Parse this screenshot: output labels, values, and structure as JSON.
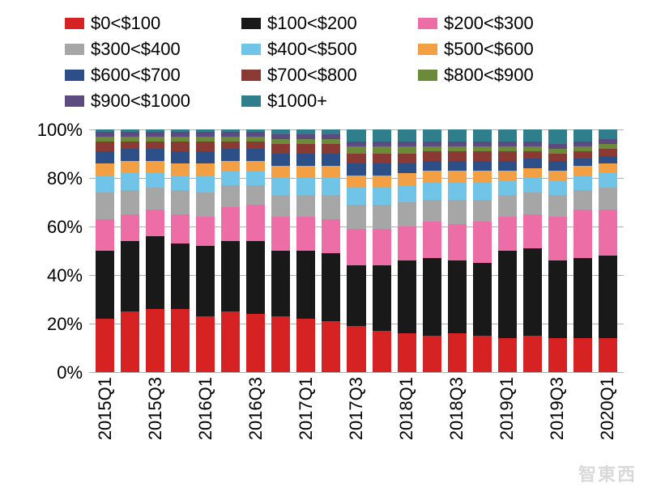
{
  "chart": {
    "type": "stacked-bar-100pct",
    "background_color": "#ffffff",
    "grid_color": "#b0b0b0",
    "font_family": "Arial",
    "label_fontsize": 22,
    "ylim": [
      0,
      100
    ],
    "ytick_step": 20,
    "y_suffix": "%",
    "series": [
      {
        "label": "$0<$100",
        "color": "#d62223"
      },
      {
        "label": "$100<$200",
        "color": "#191919"
      },
      {
        "label": "$200<$300",
        "color": "#ed6ea7"
      },
      {
        "label": "$300<$400",
        "color": "#a6a6a6"
      },
      {
        "label": "$400<$500",
        "color": "#6fc4e8"
      },
      {
        "label": "$500<$600",
        "color": "#f2a043"
      },
      {
        "label": "$600<$700",
        "color": "#2d4f87"
      },
      {
        "label": "$700<$800",
        "color": "#8a3a33"
      },
      {
        "label": "$800<$900",
        "color": "#6c8b3a"
      },
      {
        "label": "$900<$1000",
        "color": "#5c4a80"
      },
      {
        "label": "$1000+",
        "color": "#2f7e8c"
      }
    ],
    "legend_layout": [
      [
        0,
        1,
        2
      ],
      [
        3,
        4,
        5
      ],
      [
        6,
        7,
        8
      ],
      [
        9,
        10
      ]
    ],
    "categories": [
      "2015Q1",
      "2015Q2",
      "2015Q3",
      "2015Q4",
      "2016Q1",
      "2016Q2",
      "2016Q3",
      "2016Q4",
      "2017Q1",
      "2017Q2",
      "2017Q3",
      "2017Q4",
      "2018Q1",
      "2018Q2",
      "2018Q3",
      "2018Q4",
      "2019Q1",
      "2019Q2",
      "2019Q3",
      "2019Q4",
      "2020Q1"
    ],
    "x_label_visible_step": 2,
    "data": [
      [
        22,
        28,
        13,
        11,
        7,
        5,
        5,
        4,
        2,
        2,
        1
      ],
      [
        25,
        29,
        11,
        10,
        7,
        5,
        5,
        3,
        2,
        2,
        1
      ],
      [
        26,
        30,
        11,
        9,
        6,
        5,
        5,
        3,
        2,
        2,
        1
      ],
      [
        26,
        27,
        12,
        10,
        6,
        5,
        5,
        4,
        2,
        2,
        1
      ],
      [
        23,
        29,
        12,
        10,
        7,
        5,
        5,
        4,
        2,
        2,
        1
      ],
      [
        25,
        29,
        14,
        9,
        6,
        4,
        5,
        3,
        2,
        2,
        1
      ],
      [
        24,
        30,
        15,
        8,
        6,
        4,
        5,
        3,
        2,
        2,
        1
      ],
      [
        23,
        27,
        14,
        9,
        7,
        5,
        5,
        4,
        2,
        2,
        2
      ],
      [
        22,
        28,
        14,
        9,
        7,
        5,
        5,
        4,
        2,
        2,
        2
      ],
      [
        21,
        28,
        14,
        10,
        7,
        5,
        5,
        4,
        2,
        2,
        2
      ],
      [
        19,
        25,
        15,
        10,
        7,
        5,
        5,
        4,
        3,
        2,
        5
      ],
      [
        17,
        27,
        15,
        10,
        7,
        5,
        5,
        4,
        3,
        2,
        5
      ],
      [
        16,
        30,
        14,
        10,
        7,
        5,
        4,
        4,
        3,
        2,
        5
      ],
      [
        15,
        32,
        15,
        9,
        7,
        5,
        4,
        4,
        2,
        2,
        5
      ],
      [
        16,
        30,
        15,
        10,
        7,
        5,
        4,
        4,
        2,
        2,
        5
      ],
      [
        15,
        30,
        17,
        9,
        7,
        5,
        4,
        4,
        2,
        2,
        5
      ],
      [
        14,
        36,
        14,
        9,
        6,
        4,
        4,
        4,
        2,
        2,
        5
      ],
      [
        15,
        36,
        14,
        9,
        6,
        4,
        4,
        3,
        2,
        2,
        5
      ],
      [
        14,
        32,
        18,
        9,
        6,
        4,
        4,
        3,
        2,
        2,
        6
      ],
      [
        14,
        33,
        20,
        8,
        6,
        4,
        3,
        3,
        2,
        2,
        5
      ],
      [
        14,
        34,
        19,
        9,
        6,
        4,
        3,
        3,
        2,
        2,
        4
      ]
    ]
  },
  "watermark": "智東西"
}
